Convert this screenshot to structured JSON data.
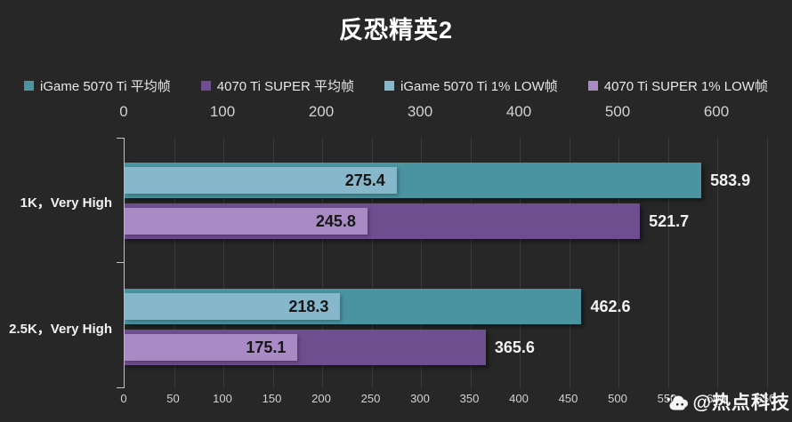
{
  "title": "反恐精英2",
  "colors": {
    "background": "#272727",
    "gridline": "#3b3b3b",
    "axis_line": "#c2c2c2",
    "tick_label": "#d2d2d2",
    "title_text": "#ffffff",
    "value_outside": "#f2f2f2",
    "value_inside": "#161616"
  },
  "chart_data": {
    "type": "bar",
    "orientation": "horizontal",
    "title": "反恐精英2",
    "categories": [
      "1K，Very High",
      "2.5K，Very High"
    ],
    "series": [
      {
        "name": "iGame 5070 Ti 平均帧",
        "color": "#4a94a1",
        "values": [
          583.9,
          462.6
        ]
      },
      {
        "name": "4070 Ti SUPER 平均帧",
        "color": "#6f4e90",
        "values": [
          521.7,
          365.6
        ]
      },
      {
        "name": "iGame 5070 Ti 1% LOW帧",
        "color": "#87b7cb",
        "values": [
          275.4,
          218.3
        ]
      },
      {
        "name": "4070 Ti SUPER 1% LOW帧",
        "color": "#a88bc5",
        "values": [
          245.8,
          175.1
        ]
      }
    ],
    "overlay_pairs": [
      [
        0,
        2
      ],
      [
        1,
        3
      ]
    ],
    "x_axis_top": {
      "min": 0,
      "max": 650,
      "ticks": [
        0,
        100,
        200,
        300,
        400,
        500,
        600
      ]
    },
    "x_axis_bottom": {
      "min": 0,
      "max": 650,
      "ticks": [
        0,
        50,
        100,
        150,
        200,
        250,
        300,
        350,
        400,
        450,
        500,
        550,
        600,
        650
      ]
    },
    "grid": true,
    "legend_position": "top"
  },
  "watermark": {
    "text": "@热点科技",
    "icon": "cloud-logo-icon"
  }
}
